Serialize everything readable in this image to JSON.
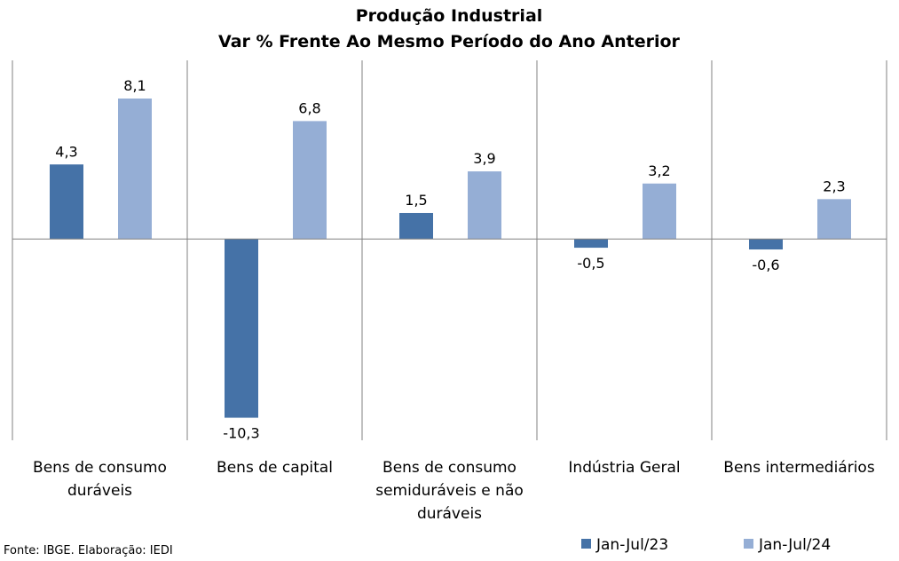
{
  "chart_data": {
    "type": "bar",
    "title": "Produção Industrial",
    "subtitle": "Var % Frente Ao Mesmo Período do Ano Anterior",
    "categories": [
      [
        "Bens de consumo",
        "duráveis"
      ],
      [
        "Bens de capital"
      ],
      [
        "Bens de consumo",
        "semiduráveis e não",
        "duráveis"
      ],
      [
        "Indústria Geral"
      ],
      [
        "Bens intermediários"
      ]
    ],
    "series": [
      {
        "name": "Jan-Jul/23",
        "color": "#4572A7",
        "values": [
          4.3,
          -10.3,
          1.5,
          -0.5,
          -0.6
        ],
        "labels": [
          "4,3",
          "-10,3",
          "1,5",
          "-0,5",
          "-0,6"
        ]
      },
      {
        "name": "Jan-Jul/24",
        "color": "#95AED5",
        "values": [
          8.1,
          6.8,
          3.9,
          3.2,
          2.3
        ],
        "labels": [
          "8,1",
          "6,8",
          "3,9",
          "3,2",
          "2,3"
        ]
      }
    ],
    "ylim": [
      -11.6,
      10.3
    ],
    "grid": false,
    "legend": "bottom-right"
  },
  "source": "Fonte: IBGE. Elaboração: IEDI"
}
